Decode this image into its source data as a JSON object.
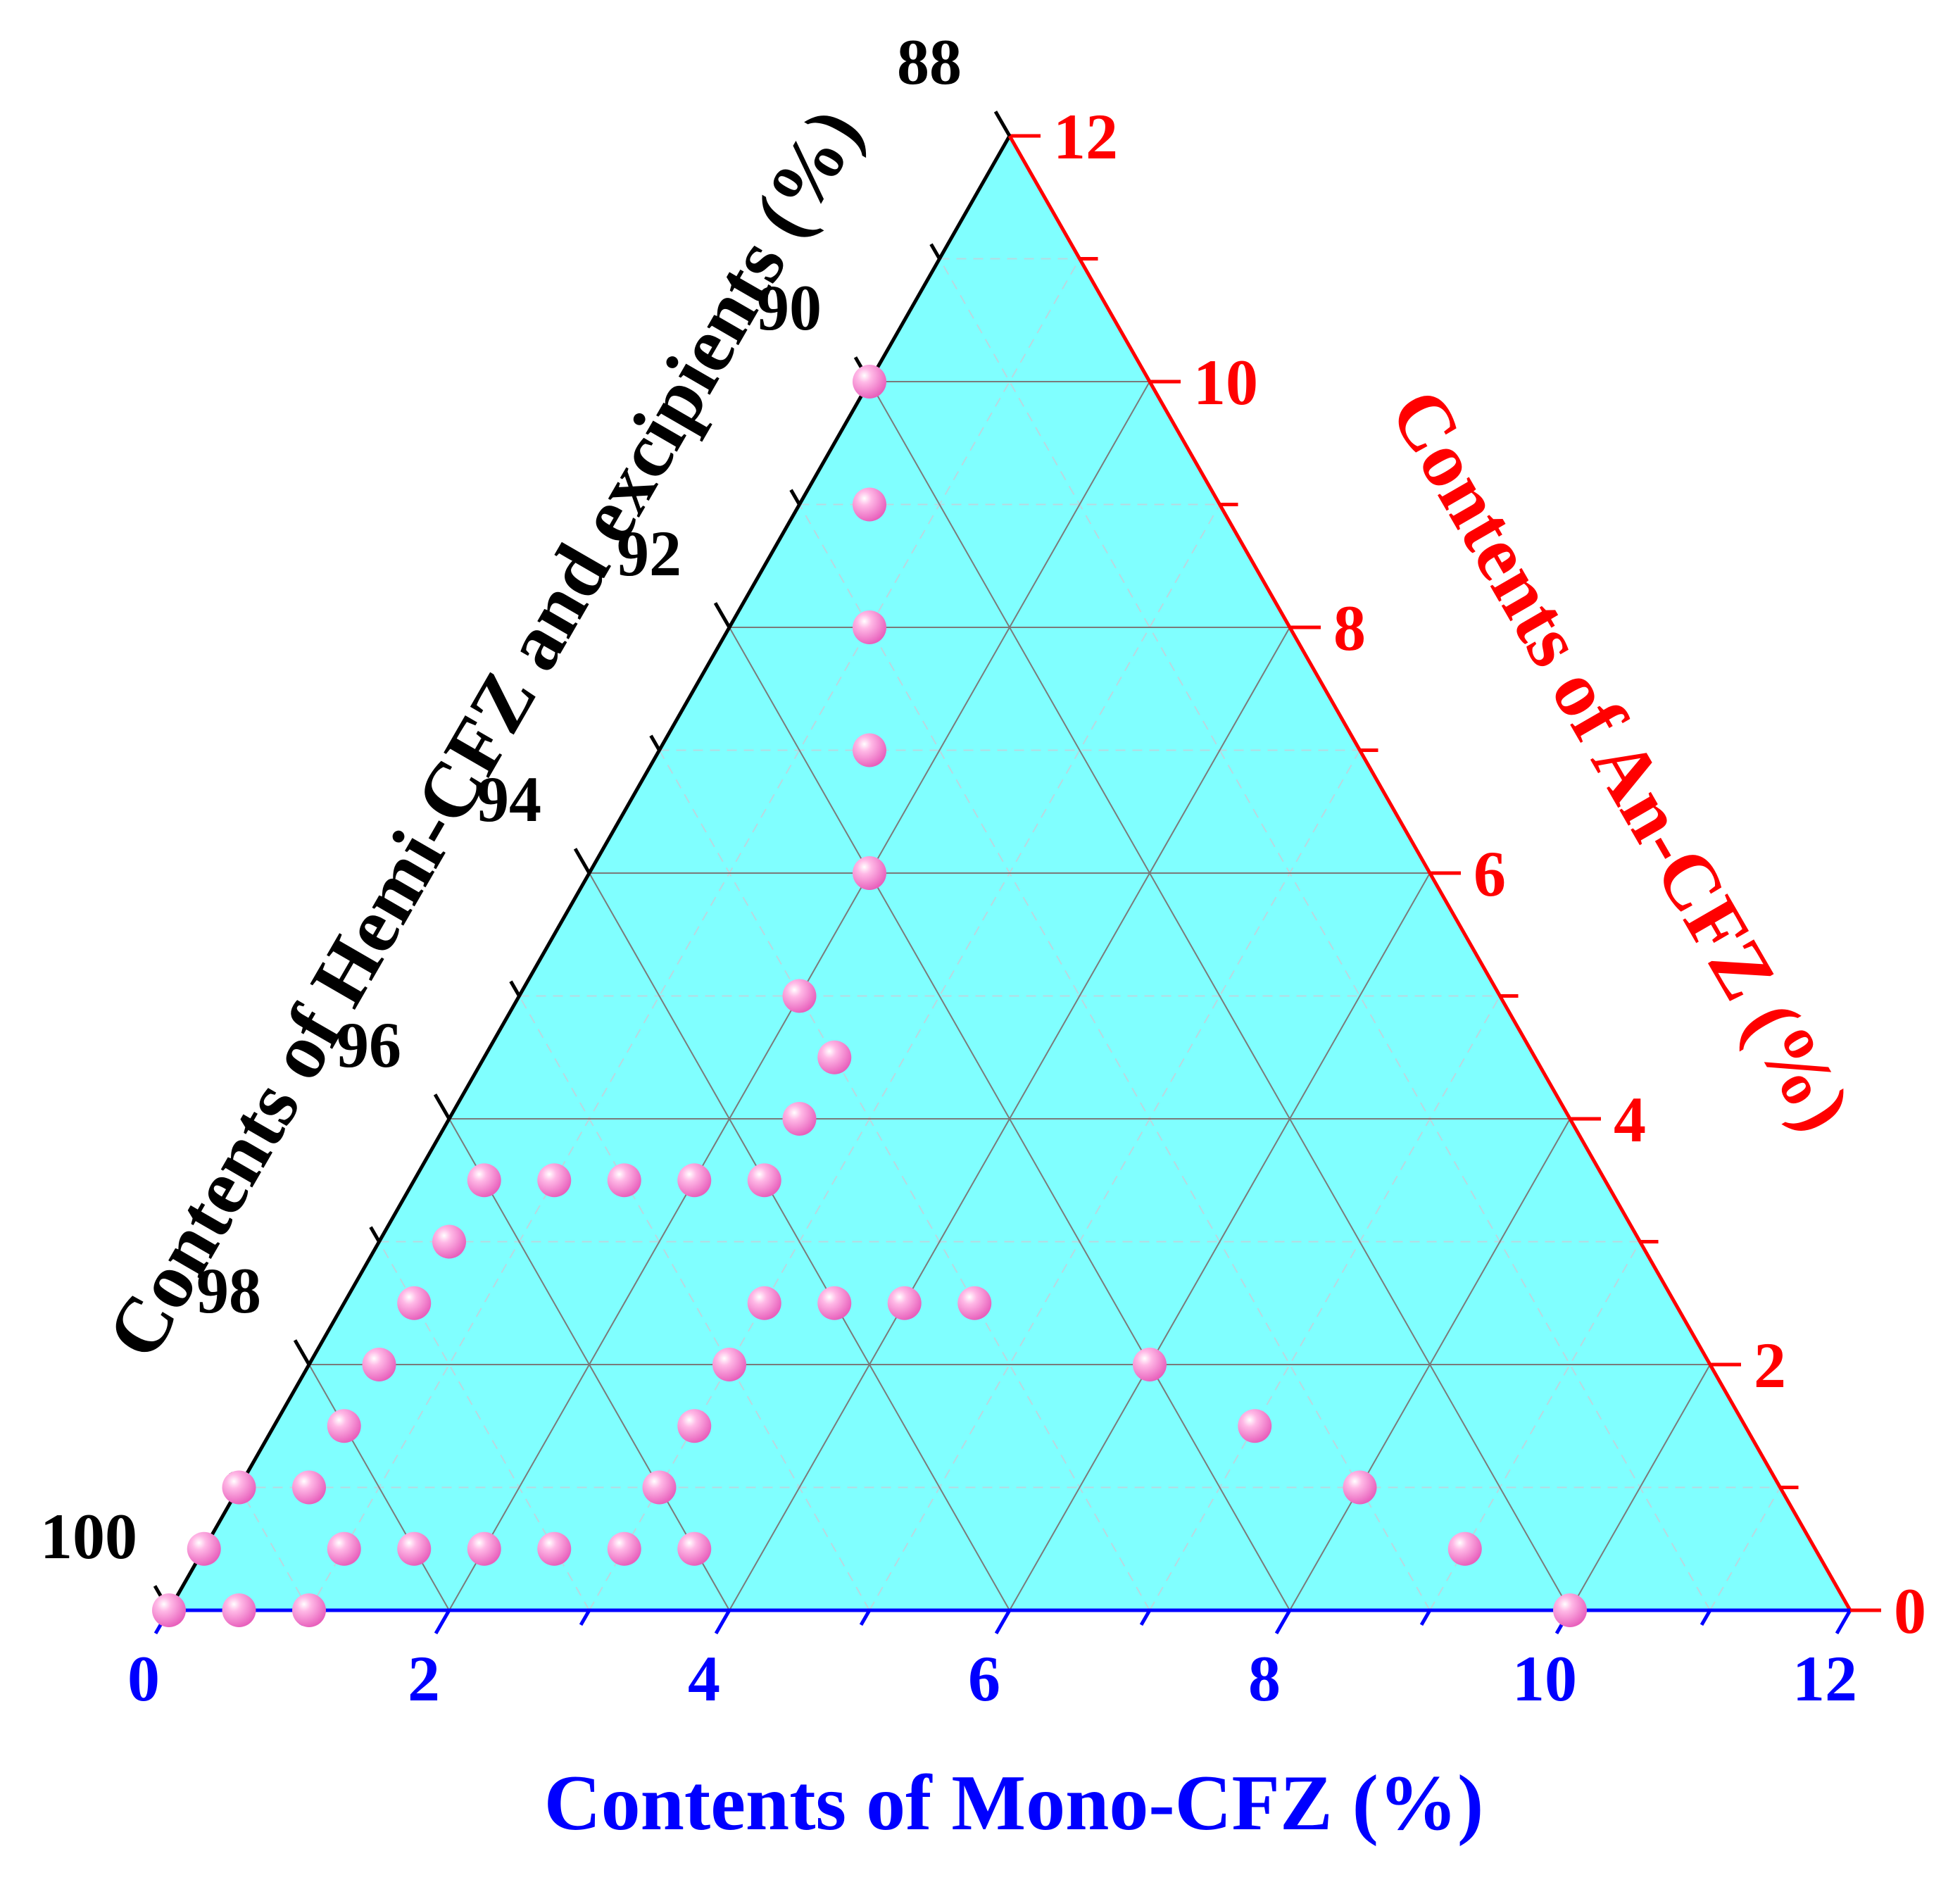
{
  "chart_data": {
    "type": "ternary-scatter",
    "axes": {
      "bottom": {
        "label": "Contents of Mono-CFZ (%)",
        "color": "#0000ff",
        "range": [
          0,
          12
        ],
        "ticks": [
          "0",
          "2",
          "4",
          "6",
          "8",
          "10",
          "12"
        ]
      },
      "right": {
        "label": "Contents of An-CFZ (%)",
        "color": "#ff0000",
        "range": [
          0,
          12
        ],
        "ticks": [
          "0",
          "2",
          "4",
          "6",
          "8",
          "10",
          "12"
        ]
      },
      "left": {
        "label": "Contents of Hemi-CFZ and excipients (%)",
        "color": "#000000",
        "range": [
          88,
          100
        ],
        "ticks": [
          "100",
          "98",
          "96",
          "94",
          "92",
          "90",
          "88"
        ]
      }
    },
    "colors": {
      "fill": "#80ffff",
      "grid": "#7a7a7a",
      "marker": "#ff7fcf"
    },
    "grid": true,
    "minor_grid": true,
    "points": [
      {
        "mono": 0.0,
        "an": 0.0
      },
      {
        "mono": 0.5,
        "an": 0.0
      },
      {
        "mono": 1.0,
        "an": 0.0
      },
      {
        "mono": 0.0,
        "an": 0.5
      },
      {
        "mono": 0.0,
        "an": 1.0
      },
      {
        "mono": 0.5,
        "an": 1.0
      },
      {
        "mono": 0.5,
        "an": 1.5
      },
      {
        "mono": 0.5,
        "an": 2.0
      },
      {
        "mono": 0.5,
        "an": 2.5
      },
      {
        "mono": 0.5,
        "an": 3.0
      },
      {
        "mono": 0.5,
        "an": 3.5
      },
      {
        "mono": 1.0,
        "an": 3.5
      },
      {
        "mono": 1.5,
        "an": 3.5
      },
      {
        "mono": 2.0,
        "an": 3.5
      },
      {
        "mono": 2.5,
        "an": 3.5
      },
      {
        "mono": 1.0,
        "an": 0.5
      },
      {
        "mono": 1.5,
        "an": 0.5
      },
      {
        "mono": 2.0,
        "an": 0.5
      },
      {
        "mono": 2.5,
        "an": 0.5
      },
      {
        "mono": 3.0,
        "an": 0.5
      },
      {
        "mono": 3.5,
        "an": 0.5
      },
      {
        "mono": 3.0,
        "an": 1.0
      },
      {
        "mono": 3.0,
        "an": 1.5
      },
      {
        "mono": 3.0,
        "an": 2.0
      },
      {
        "mono": 3.0,
        "an": 2.5
      },
      {
        "mono": 3.5,
        "an": 2.5
      },
      {
        "mono": 4.0,
        "an": 2.5
      },
      {
        "mono": 4.5,
        "an": 2.5
      },
      {
        "mono": 2.5,
        "an": 4.0
      },
      {
        "mono": 2.5,
        "an": 4.5
      },
      {
        "mono": 2.0,
        "an": 5.0
      },
      {
        "mono": 2.0,
        "an": 6.0
      },
      {
        "mono": 1.5,
        "an": 7.0
      },
      {
        "mono": 1.0,
        "an": 8.0
      },
      {
        "mono": 0.5,
        "an": 9.0
      },
      {
        "mono": 0.0,
        "an": 10.0
      },
      {
        "mono": 6.0,
        "an": 2.0
      },
      {
        "mono": 7.0,
        "an": 1.5
      },
      {
        "mono": 8.0,
        "an": 1.0
      },
      {
        "mono": 9.0,
        "an": 0.5
      },
      {
        "mono": 10.0,
        "an": 0.0
      }
    ]
  }
}
